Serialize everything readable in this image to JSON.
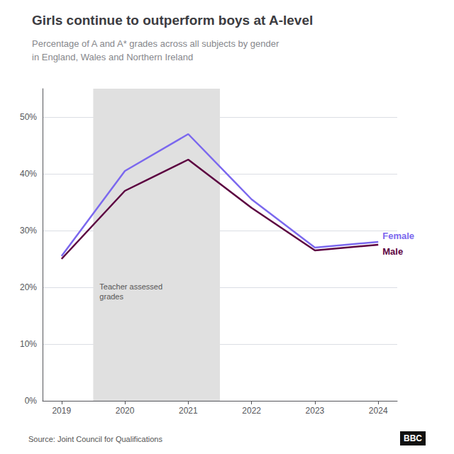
{
  "chart_data": {
    "type": "line",
    "title": "Girls continue to outperform boys at A-level",
    "subtitle": "Percentage of A and A* grades across all subjects by gender\nin England, Wales and Northern Ireland",
    "source": "Source: Joint Council for Qualifications",
    "logo": "BBC",
    "x": [
      2019,
      2020,
      2021,
      2022,
      2023,
      2024
    ],
    "series": [
      {
        "name": "Female",
        "color": "#7B68EE",
        "values": [
          25.5,
          40.5,
          47.0,
          35.5,
          27.0,
          28.0
        ]
      },
      {
        "name": "Male",
        "color": "#5C0040",
        "values": [
          25.0,
          37.0,
          42.5,
          34.0,
          26.5,
          27.5
        ]
      }
    ],
    "xlim": [
      2018.7,
      2024.3
    ],
    "xticks": [
      2019,
      2020,
      2021,
      2022,
      2023,
      2024
    ],
    "ylim": [
      0,
      55
    ],
    "yticks": [
      {
        "value": 0,
        "label": "0%"
      },
      {
        "value": 10,
        "label": "10%"
      },
      {
        "value": 20,
        "label": "20%"
      },
      {
        "value": 30,
        "label": "30%"
      },
      {
        "value": 40,
        "label": "40%"
      },
      {
        "value": 50,
        "label": "50%"
      }
    ],
    "grid": true,
    "shaded_region": {
      "from": 2019.5,
      "to": 2021.5,
      "color": "#E0E0E0"
    },
    "annotations": [
      {
        "text": "Teacher assessed\ngrades",
        "x": 2019.6,
        "y": 21
      }
    ]
  }
}
